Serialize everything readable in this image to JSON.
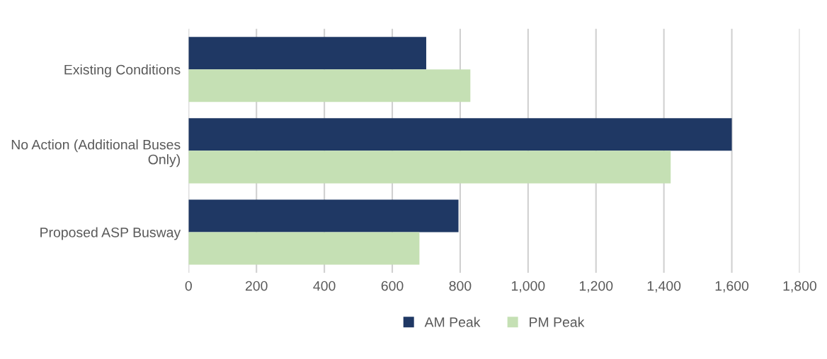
{
  "chart_data": {
    "type": "bar",
    "orientation": "horizontal",
    "categories": [
      "Existing Conditions",
      "No Action (Additional Buses Only)",
      "Proposed ASP Busway"
    ],
    "series": [
      {
        "name": "AM Peak",
        "color": "#1f3864",
        "values": [
          700,
          1600,
          795
        ]
      },
      {
        "name": "PM Peak",
        "color": "#c5e0b4",
        "values": [
          830,
          1420,
          680
        ]
      }
    ],
    "xlim": [
      0,
      1800
    ],
    "xticks": [
      0,
      200,
      400,
      600,
      800,
      {
        "value": 1000,
        "label": "1,000"
      },
      {
        "value": 1200,
        "label": "1,200"
      },
      {
        "value": 1400,
        "label": "1,400"
      },
      {
        "value": 1600,
        "label": "1,600"
      },
      {
        "value": 1800,
        "label": "1,800"
      }
    ],
    "grid": "x",
    "legend": "bottom"
  }
}
